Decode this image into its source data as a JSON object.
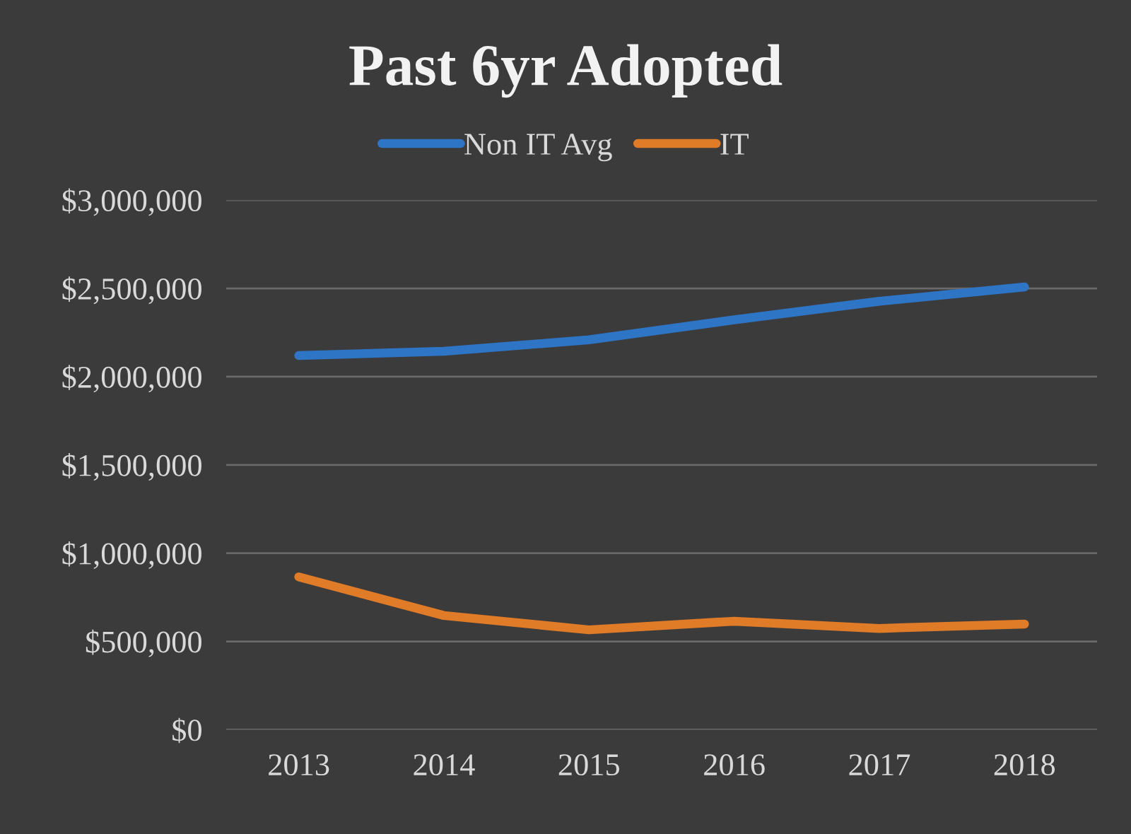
{
  "chart_data": {
    "type": "line",
    "title": "Past 6yr Adopted",
    "categories": [
      "2013",
      "2014",
      "2015",
      "2016",
      "2017",
      "2018"
    ],
    "series": [
      {
        "name": "Non IT Avg",
        "color": "#2e75c6",
        "values": [
          2120000,
          2144000,
          2209000,
          2322000,
          2427000,
          2508000
        ]
      },
      {
        "name": "IT",
        "color": "#e07b28",
        "values": [
          866000,
          647000,
          566000,
          615000,
          574000,
          599000
        ]
      }
    ],
    "ylim": [
      0,
      3000000
    ],
    "yticks": [
      {
        "value": 0,
        "label": "$0"
      },
      {
        "value": 500000,
        "label": "$500,000"
      },
      {
        "value": 1000000,
        "label": "$1,000,000"
      },
      {
        "value": 1500000,
        "label": "$1,500,000"
      },
      {
        "value": 2000000,
        "label": "$2,000,000"
      },
      {
        "value": 2500000,
        "label": "$2,500,000"
      },
      {
        "value": 3000000,
        "label": "$3,000,000"
      }
    ],
    "grid": "y",
    "legend": "top",
    "marker": "none",
    "line_style": "solid"
  }
}
